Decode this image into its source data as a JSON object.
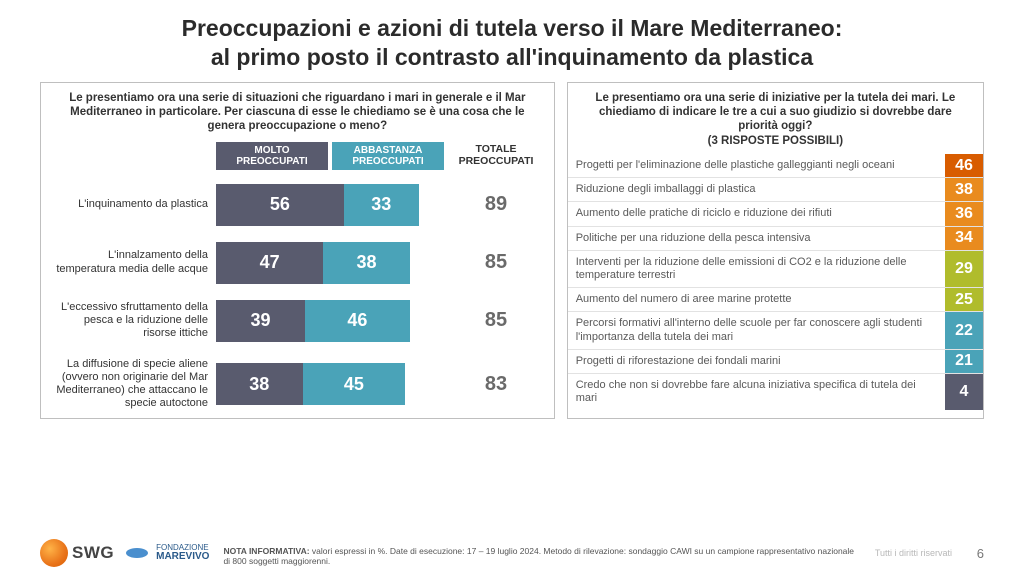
{
  "title_line1": "Preoccupazioni e azioni di tutela verso il Mare Mediterraneo:",
  "title_line2": "al primo posto il contrasto all'inquinamento da plastica",
  "left": {
    "question": "Le presentiamo ora una serie di situazioni che riguardano i mari in generale e il Mar Mediterraneo in particolare. Per ciascuna di esse le chiediamo se è una cosa che le genera preoccupazione o meno?",
    "legend_molto": "MOLTO PREOCCUPATI",
    "legend_abb": "ABBASTANZA PREOCCUPATI",
    "legend_tot": "TOTALE PREOCCUPATI",
    "color_molto": "#595b6e",
    "color_abb": "#4aa3b8",
    "scale_max": 100,
    "rows": [
      {
        "label": "L'inquinamento da plastica",
        "molto": 56,
        "abb": 33,
        "tot": 89
      },
      {
        "label": "L'innalzamento della temperatura media delle acque",
        "molto": 47,
        "abb": 38,
        "tot": 85
      },
      {
        "label": "L'eccessivo sfruttamento della pesca e la riduzione delle risorse ittiche",
        "molto": 39,
        "abb": 46,
        "tot": 85
      },
      {
        "label": "La diffusione di specie aliene (ovvero non originarie del Mar Mediterraneo) che attaccano le specie autoctone",
        "molto": 38,
        "abb": 45,
        "tot": 83
      }
    ]
  },
  "right": {
    "question": "Le presentiamo ora una serie di iniziative per la tutela dei mari. Le chiediamo di indicare le tre a cui a suo giudizio si dovrebbe dare priorità oggi?",
    "subnote": "(3 RISPOSTE POSSIBILI)",
    "rows": [
      {
        "label": "Progetti per l'eliminazione delle plastiche galleggianti negli oceani",
        "val": 46,
        "color": "#d85c00"
      },
      {
        "label": "Riduzione degli imballaggi di plastica",
        "val": 38,
        "color": "#e98b1e"
      },
      {
        "label": "Aumento delle pratiche di riciclo e riduzione dei rifiuti",
        "val": 36,
        "color": "#e98b1e"
      },
      {
        "label": "Politiche per una riduzione della pesca intensiva",
        "val": 34,
        "color": "#e98b1e"
      },
      {
        "label": "Interventi per la riduzione delle emissioni di CO2 e la riduzione delle temperature terrestri",
        "val": 29,
        "color": "#b0bc2c"
      },
      {
        "label": "Aumento del numero di aree marine protette",
        "val": 25,
        "color": "#b0bc2c"
      },
      {
        "label": "Percorsi formativi all'interno delle scuole per far conoscere agli studenti l'importanza della tutela dei mari",
        "val": 22,
        "color": "#4aa3b8"
      },
      {
        "label": "Progetti di riforestazione dei fondali marini",
        "val": 21,
        "color": "#4aa3b8"
      },
      {
        "label": "Credo che non si dovrebbe fare alcuna iniziativa specifica di tutela dei mari",
        "val": 4,
        "color": "#595b6e"
      }
    ]
  },
  "footer": {
    "swg": "SWG",
    "marevivo_top": "FONDAZIONE",
    "marevivo_bot": "MAREVIVO",
    "nota_label": "NOTA INFORMATIVA:",
    "nota_text": " valori espressi in %. Date di esecuzione: 17 – 19 luglio 2024. Metodo di rilevazione: sondaggio CAWI su un campione rappresentativo nazionale di 800 soggetti maggiorenni.",
    "rights": "Tutti i diritti riservati",
    "page": "6"
  }
}
